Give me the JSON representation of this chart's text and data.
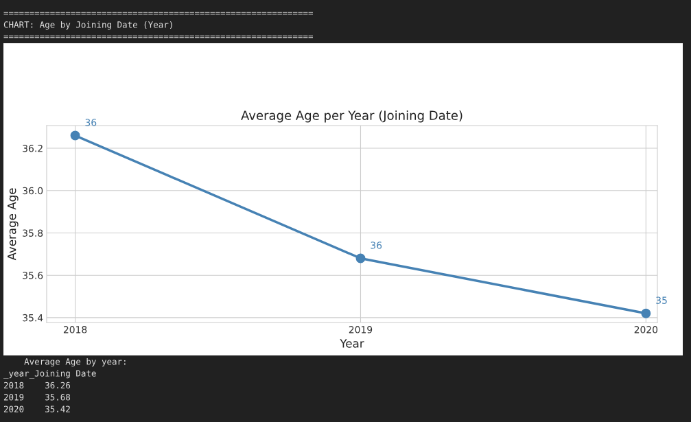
{
  "chart_data": {
    "type": "line",
    "title": "Average Age per Year (Joining Date)",
    "xlabel": "Year",
    "ylabel": "Average Age",
    "x": [
      2018,
      2019,
      2020
    ],
    "series": [
      {
        "color": "#4682b4",
        "values": [
          36.26,
          35.68,
          35.42
        ],
        "value_labels": [
          "36",
          "36",
          "35"
        ]
      }
    ],
    "xlim": [
      2017.9,
      2020.04
    ],
    "xticks": [
      2018,
      2019,
      2020
    ],
    "ylim": [
      35.377,
      36.307
    ],
    "yticks": [
      35.4,
      35.6,
      35.8,
      {
        "value": 36,
        "label": "36.0"
      },
      36.2
    ],
    "grid": true,
    "marker": "circle",
    "line_style": "solid",
    "annotations": [
      "============================================================",
      "CHART: Age by Joining Date (Year)",
      "============================================================",
      "    Average Age by year:",
      "_year_Joining Date",
      "2018    36.26",
      "2019    35.68",
      "2020    35.42"
    ]
  }
}
